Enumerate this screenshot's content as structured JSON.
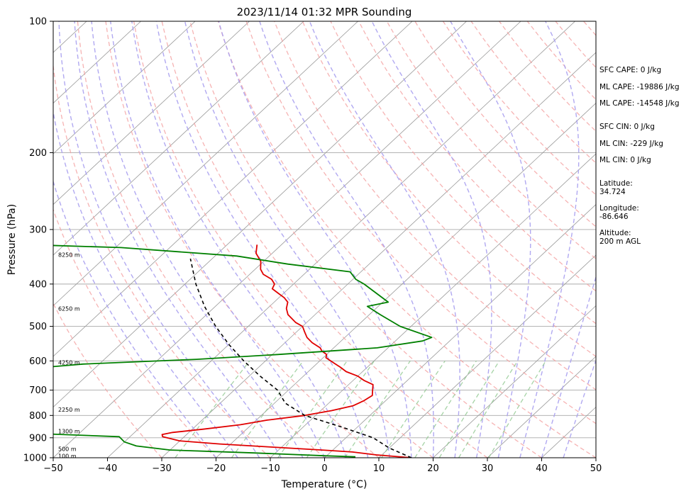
{
  "chart_data": {
    "type": "line",
    "title": "2023/11/14 01:32 MPR Sounding",
    "xlabel": "Temperature (°C)",
    "ylabel": "Pressure (hPa)",
    "xlim": [
      -50,
      50
    ],
    "ylim": [
      1000,
      100
    ],
    "y_scale": "log",
    "skew": true,
    "grid": true,
    "x_ticks": [
      -50,
      -40,
      -30,
      -20,
      -10,
      0,
      10,
      20,
      30,
      40,
      50
    ],
    "y_ticks": [
      1000,
      900,
      800,
      700,
      600,
      500,
      400,
      300,
      200,
      100
    ],
    "colors": {
      "temperature": "#e00000",
      "dewpoint": "#008000",
      "parcel": "#000000",
      "dry_adiabat": "#f4a0a0",
      "moist_adiabat": "#a8a0f0",
      "mixing_ratio": "#90c890",
      "isotherm": "#999999",
      "isobar": "#aaaaaa"
    },
    "series": [
      {
        "key": "temperature",
        "x": [
          16.0,
          9.0,
          4.0,
          -2.0,
          -12.0,
          -22.0,
          -30.0,
          -32.0,
          -34.0,
          -34.5,
          -33.0,
          -28.0,
          -22.0,
          -18.0,
          -12.0,
          -8.0,
          -5.0,
          -4.0,
          -3.5,
          -4.5,
          -5.0,
          -5.5,
          -8.0,
          -10.0,
          -13.0,
          -15.0,
          -16.5,
          -18.0,
          -19.5,
          -20.0,
          -21.5,
          -22.5,
          -25.0,
          -27.0,
          -28.5,
          -30.0,
          -32.0,
          -35.0,
          -36.5,
          -37.5,
          -39.0,
          -41.0,
          -43.0,
          -43.5,
          -45.0,
          -47.5,
          -49.0,
          -50.5,
          -53.0,
          -54.5
        ],
        "p": [
          1000,
          985,
          970,
          960,
          945,
          930,
          915,
          905,
          895,
          885,
          875,
          860,
          840,
          820,
          800,
          780,
          760,
          740,
          720,
          700,
          690,
          680,
          665,
          650,
          635,
          620,
          610,
          600,
          590,
          580,
          570,
          560,
          545,
          530,
          515,
          500,
          490,
          470,
          455,
          440,
          430,
          420,
          410,
          400,
          390,
          380,
          370,
          355,
          340,
          325
        ]
      },
      {
        "key": "dewpoint",
        "x": [
          5.5,
          0,
          -14,
          -30,
          -37,
          -40,
          -42,
          -58,
          -64,
          -93,
          -77,
          -68,
          -78,
          -86,
          -82,
          -72,
          -63,
          -43,
          -29,
          -12,
          -5,
          -4,
          -12,
          -18,
          -22,
          -19,
          -27,
          -29.5,
          -32,
          -45,
          -56,
          -79,
          -97
        ],
        "p": [
          995,
          990,
          975,
          960,
          940,
          920,
          895,
          880,
          865,
          850,
          730,
          700,
          685,
          660,
          640,
          625,
          610,
          595,
          580,
          560,
          540,
          530,
          500,
          470,
          450,
          440,
          400,
          390,
          375,
          360,
          345,
          330,
          325
        ]
      },
      {
        "key": "parcel",
        "x": [
          16,
          10,
          5,
          -3,
          -12,
          -18,
          -22,
          -28,
          -34,
          -40,
          -46,
          -52,
          -58,
          -64
        ],
        "p": [
          1000,
          950,
          900,
          850,
          800,
          750,
          700,
          650,
          600,
          550,
          500,
          450,
          400,
          350
        ]
      }
    ],
    "height_labels": [
      {
        "text": "100 m",
        "p": 990
      },
      {
        "text": "500 m",
        "p": 955
      },
      {
        "text": "1300 m",
        "p": 870
      },
      {
        "text": "2250 m",
        "p": 775
      },
      {
        "text": "4250 m",
        "p": 605
      },
      {
        "text": "6250 m",
        "p": 455
      },
      {
        "text": "8250 m",
        "p": 343
      }
    ]
  },
  "info_panel": {
    "sfc_cape": "SFC CAPE: 0 J/kg",
    "ml_cape_1": "ML CAPE: -19886 J/kg",
    "ml_cape_2": "ML CAPE: -14548 J/kg",
    "sfc_cin": "SFC CIN: 0 J/kg",
    "ml_cin_1": "ML CIN: -229 J/kg",
    "ml_cin_2": "ML CIN: 0 J/kg",
    "latitude_label": "Latitude:",
    "latitude_value": "34.724",
    "longitude_label": "Longitude:",
    "longitude_value": "-86.646",
    "altitude_label": "Altitude:",
    "altitude_value": "200 m AGL"
  }
}
